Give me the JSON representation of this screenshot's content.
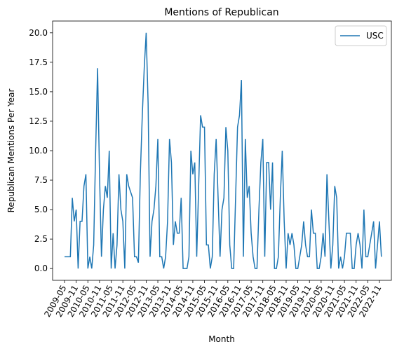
{
  "chart_data": {
    "type": "line",
    "title": "Mentions of Republican",
    "xlabel": "Month",
    "ylabel": "Republican Mentions Per Year",
    "categories": [
      "2009-05",
      null,
      null,
      null,
      null,
      null,
      "2009-11",
      null,
      null,
      null,
      null,
      null,
      "2010-05",
      null,
      null,
      null,
      null,
      null,
      "2010-11",
      null,
      null,
      null,
      null,
      null,
      "2011-05",
      null,
      null,
      null,
      null,
      null,
      "2011-11",
      null,
      null,
      null,
      null,
      null,
      "2012-05",
      null,
      null,
      null,
      null,
      null,
      "2012-11",
      null,
      null,
      null,
      null,
      null,
      "2013-05",
      null,
      null,
      null,
      null,
      null,
      "2013-11",
      null,
      null,
      null,
      null,
      null,
      "2014-05",
      null,
      null,
      null,
      null,
      null,
      "2014-11",
      null,
      null,
      null,
      null,
      null,
      "2015-05",
      null,
      null,
      null,
      null,
      null,
      "2015-11",
      null,
      null,
      null,
      null,
      null,
      "2016-05",
      null,
      null,
      null,
      null,
      null,
      "2016-11",
      null,
      null,
      null,
      null,
      null,
      "2017-05",
      null,
      null,
      null,
      null,
      null,
      "2017-11",
      null,
      null,
      null,
      null,
      null,
      "2018-05",
      null,
      null,
      null,
      null,
      null,
      "2018-11",
      null,
      null,
      null,
      null,
      null,
      "2019-05",
      null,
      null,
      null,
      null,
      null,
      "2019-11",
      null,
      null,
      null,
      null,
      null,
      "2020-05",
      null,
      null,
      null,
      null,
      null,
      "2020-11",
      null,
      null,
      null,
      null,
      null,
      "2021-05",
      null,
      null,
      null,
      null,
      null,
      "2021-11",
      null,
      null,
      null,
      null,
      null,
      "2022-05",
      null,
      null,
      null,
      null,
      null,
      "2022-11",
      null
    ],
    "series": [
      {
        "name": "USC",
        "color": "#1f77b4",
        "values": [
          1,
          1,
          1,
          1,
          6,
          4,
          5,
          0,
          4,
          4,
          7,
          8,
          0,
          1,
          0,
          2,
          10,
          17,
          8,
          1,
          5,
          7,
          6,
          10,
          0,
          3,
          0,
          2,
          8,
          5,
          4,
          0,
          8,
          7,
          6.5,
          6,
          1,
          1,
          0.5,
          8,
          13,
          17,
          20,
          14,
          1,
          4,
          5,
          7,
          11,
          1,
          1,
          0,
          1,
          4,
          11,
          9,
          2,
          4,
          3,
          3,
          6,
          0,
          0,
          0,
          1,
          10,
          8,
          9,
          1,
          7,
          13,
          12,
          12,
          2,
          2,
          0,
          1,
          8,
          11,
          6,
          1,
          5,
          6,
          12,
          10,
          2,
          0,
          0,
          6,
          12,
          13,
          16,
          1,
          11,
          6,
          7,
          3,
          1,
          0,
          0,
          5,
          9,
          11,
          1,
          9,
          9,
          5,
          9,
          0,
          0,
          1,
          6,
          10,
          4,
          0,
          3,
          2,
          3,
          2,
          0,
          0,
          1,
          2,
          4,
          2,
          1,
          1,
          5,
          3,
          3,
          0,
          0,
          1,
          3,
          1,
          8,
          4,
          0,
          2,
          7,
          6,
          0,
          1,
          0,
          1,
          3,
          3,
          3,
          0,
          0,
          2,
          3,
          2,
          0,
          5,
          1,
          1,
          2,
          3,
          4,
          0,
          2,
          4,
          1
        ]
      }
    ],
    "ylim": [
      -1,
      21
    ],
    "yticks": [
      {
        "value": 0,
        "label": "0.0"
      },
      {
        "value": 2.5,
        "label": "2.5"
      },
      {
        "value": 5,
        "label": "5.0"
      },
      {
        "value": 7.5,
        "label": "7.5"
      },
      {
        "value": 10,
        "label": "10.0"
      },
      {
        "value": 12.5,
        "label": "12.5"
      },
      {
        "value": 15,
        "label": "15.0"
      },
      {
        "value": 17.5,
        "label": "17.5"
      },
      {
        "value": 20,
        "label": "20.0"
      }
    ],
    "legend": "upper right"
  }
}
